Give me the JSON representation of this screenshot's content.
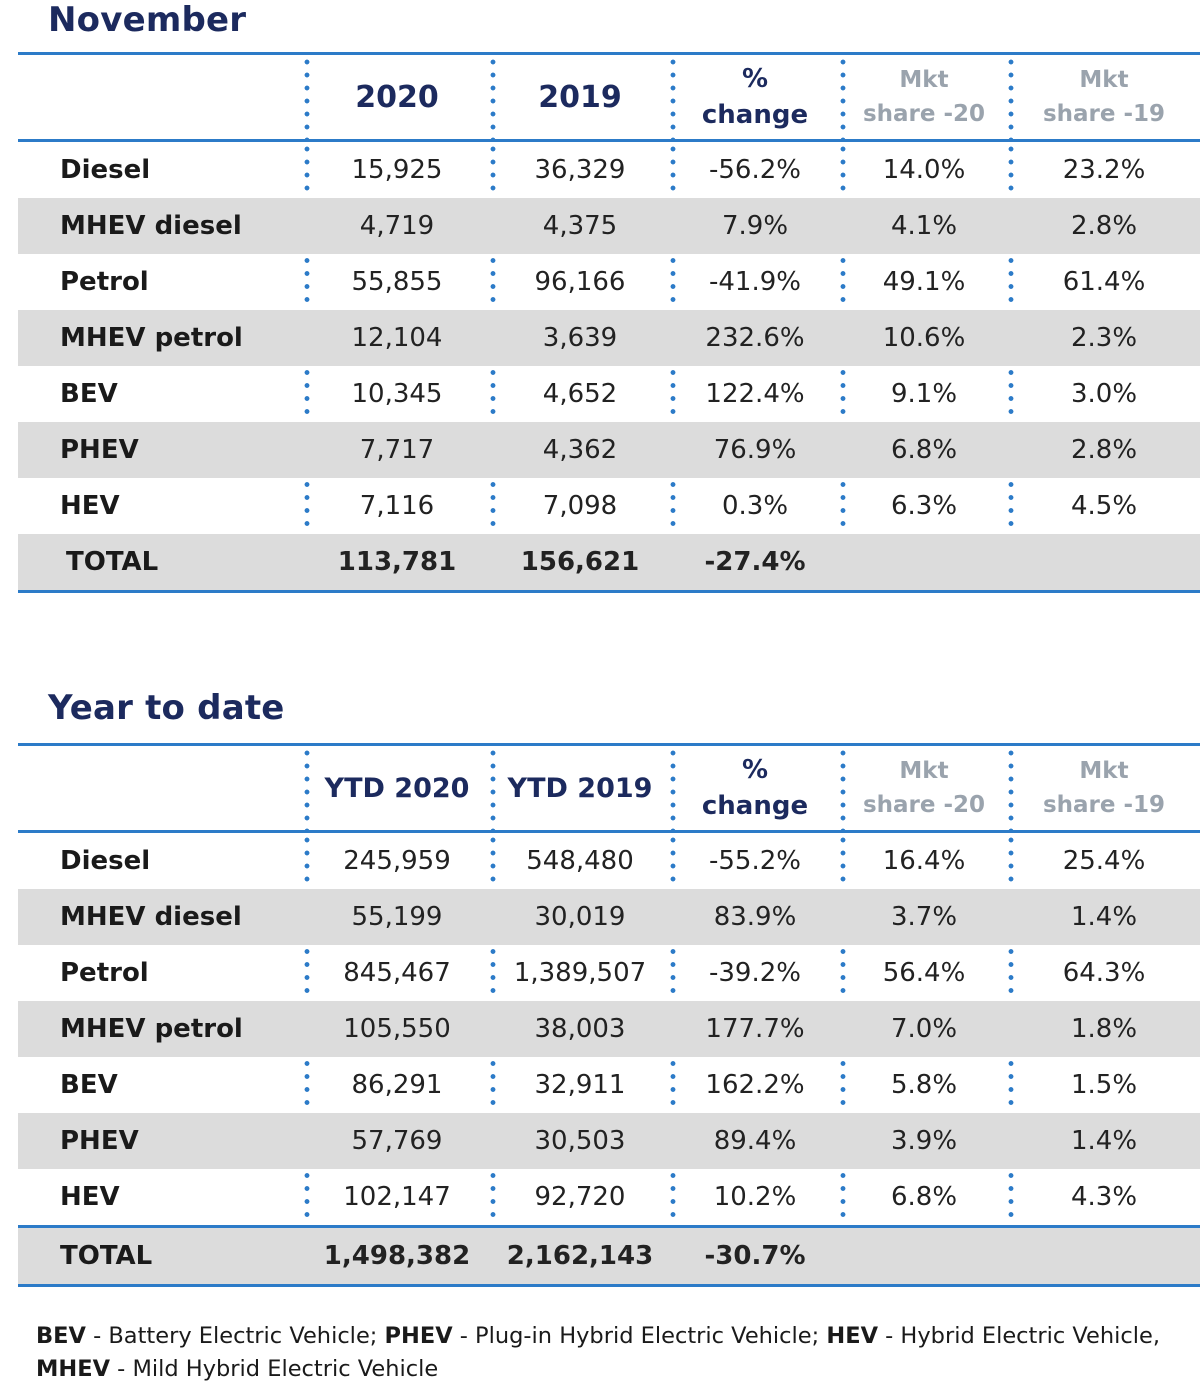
{
  "november": {
    "title": "November",
    "headers": {
      "y1": "2020",
      "y2": "2019",
      "pct_line1": "%",
      "pct_line2": "change",
      "ms1_line1": "Mkt",
      "ms1_line2": "share -20",
      "ms2_line1": "Mkt",
      "ms2_line2": "share -19"
    },
    "rows": [
      {
        "label": "Diesel",
        "v1": "15,925",
        "v2": "36,329",
        "pct": "-56.2%",
        "ms1": "14.0%",
        "ms2": "23.2%"
      },
      {
        "label": "MHEV diesel",
        "v1": "4,719",
        "v2": "4,375",
        "pct": "7.9%",
        "ms1": "4.1%",
        "ms2": "2.8%"
      },
      {
        "label": "Petrol",
        "v1": "55,855",
        "v2": "96,166",
        "pct": "-41.9%",
        "ms1": "49.1%",
        "ms2": "61.4%"
      },
      {
        "label": "MHEV petrol",
        "v1": "12,104",
        "v2": "3,639",
        "pct": "232.6%",
        "ms1": "10.6%",
        "ms2": "2.3%"
      },
      {
        "label": "BEV",
        "v1": "10,345",
        "v2": "4,652",
        "pct": "122.4%",
        "ms1": "9.1%",
        "ms2": "3.0%"
      },
      {
        "label": "PHEV",
        "v1": "7,717",
        "v2": "4,362",
        "pct": "76.9%",
        "ms1": "6.8%",
        "ms2": "2.8%"
      },
      {
        "label": "HEV",
        "v1": "7,116",
        "v2": "7,098",
        "pct": "0.3%",
        "ms1": "6.3%",
        "ms2": "4.5%"
      }
    ],
    "total": {
      "label": "TOTAL",
      "v1": "113,781",
      "v2": "156,621",
      "pct": "-27.4%"
    }
  },
  "ytd": {
    "title": "Year to date",
    "headers": {
      "y1": "YTD 2020",
      "y2": "YTD 2019",
      "pct_line1": "%",
      "pct_line2": "change",
      "ms1_line1": "Mkt",
      "ms1_line2": "share -20",
      "ms2_line1": "Mkt",
      "ms2_line2": "share -19"
    },
    "rows": [
      {
        "label": "Diesel",
        "v1": "245,959",
        "v2": "548,480",
        "pct": "-55.2%",
        "ms1": "16.4%",
        "ms2": "25.4%"
      },
      {
        "label": "MHEV diesel",
        "v1": "55,199",
        "v2": "30,019",
        "pct": "83.9%",
        "ms1": "3.7%",
        "ms2": "1.4%"
      },
      {
        "label": "Petrol",
        "v1": "845,467",
        "v2": "1,389,507",
        "pct": "-39.2%",
        "ms1": "56.4%",
        "ms2": "64.3%"
      },
      {
        "label": "MHEV petrol",
        "v1": "105,550",
        "v2": "38,003",
        "pct": "177.7%",
        "ms1": "7.0%",
        "ms2": "1.8%"
      },
      {
        "label": "BEV",
        "v1": "86,291",
        "v2": "32,911",
        "pct": "162.2%",
        "ms1": "5.8%",
        "ms2": "1.5%"
      },
      {
        "label": "PHEV",
        "v1": "57,769",
        "v2": "30,503",
        "pct": "89.4%",
        "ms1": "3.9%",
        "ms2": "1.4%"
      },
      {
        "label": "HEV",
        "v1": "102,147",
        "v2": "92,720",
        "pct": "10.2%",
        "ms1": "6.8%",
        "ms2": "4.3%"
      }
    ],
    "total": {
      "label": "TOTAL",
      "v1": "1,498,382",
      "v2": "2,162,143",
      "pct": "-30.7%"
    }
  },
  "footnote": {
    "bev_abbr": "BEV",
    "bev_text": " - Battery Electric Vehicle; ",
    "phev_abbr": "PHEV",
    "phev_text": " - Plug-in Hybrid Electric Vehicle; ",
    "hev_abbr": "HEV",
    "hev_text": " - Hybrid Electric Vehicle,",
    "mhev_abbr": "MHEV",
    "mhev_text": " - Mild Hybrid Electric Vehicle"
  },
  "colors": {
    "accent_blue": "#2c7bc8",
    "title_navy": "#1c2a5e",
    "row_shade": "#dcdcdc",
    "muted_header": "#9aa3ad"
  }
}
